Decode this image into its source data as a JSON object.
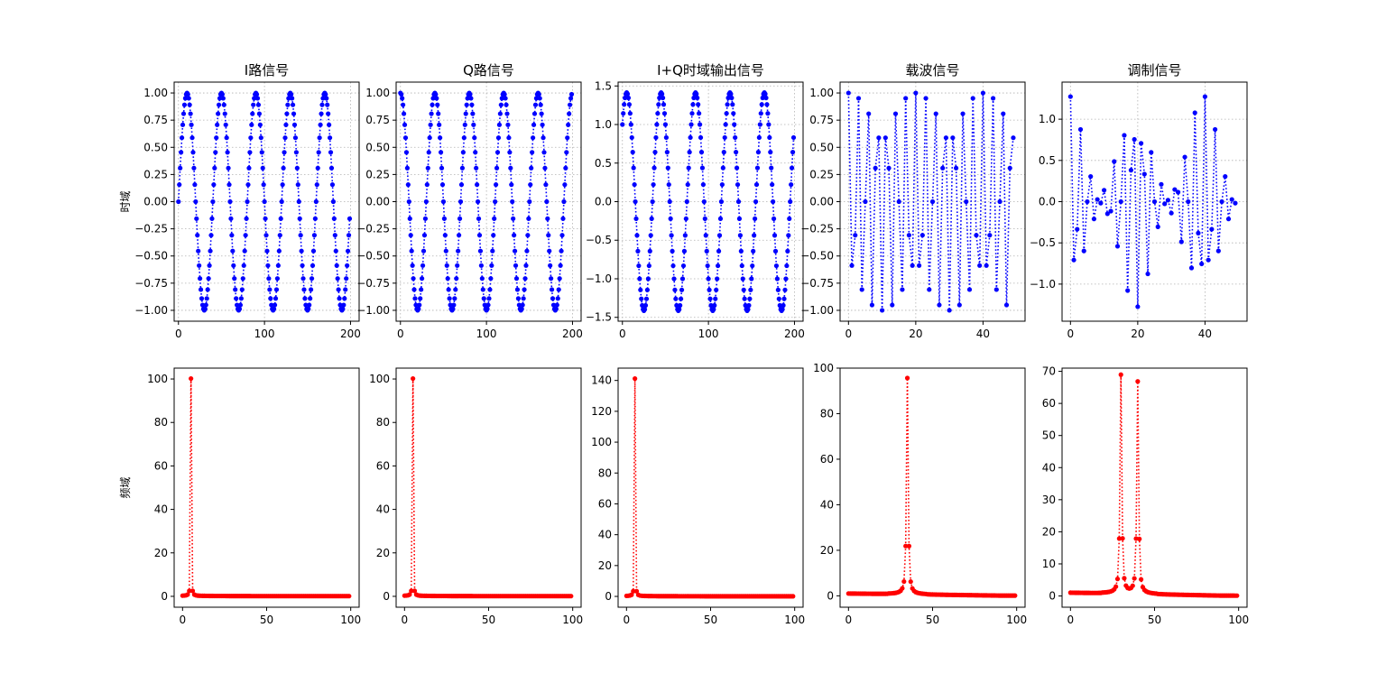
{
  "figure": {
    "row_labels": [
      "时域",
      "频域"
    ]
  },
  "chart_data": [
    {
      "id": "i-time",
      "type": "line",
      "title": "I路信号",
      "ylabel": "时域",
      "color": "#0000ff",
      "linestyle": "dotted",
      "marker": "circle",
      "grid": true,
      "xlim": [
        -5,
        210
      ],
      "ylim": [
        -1.1,
        1.1
      ],
      "xticks": [
        0,
        100,
        200
      ],
      "yticks": [
        -1.0,
        -0.75,
        -0.5,
        -0.25,
        0.0,
        0.25,
        0.5,
        0.75,
        1.0
      ],
      "ytick_format": "2",
      "signal": {
        "kind": "sin",
        "n": 200,
        "amp": 1,
        "cycles_per_sample": 0.025,
        "phase": 0
      }
    },
    {
      "id": "q-time",
      "type": "line",
      "title": "Q路信号",
      "color": "#0000ff",
      "linestyle": "dotted",
      "marker": "circle",
      "grid": true,
      "xlim": [
        -5,
        210
      ],
      "ylim": [
        -1.1,
        1.1
      ],
      "xticks": [
        0,
        100,
        200
      ],
      "yticks": [
        -1.0,
        -0.75,
        -0.5,
        -0.25,
        0.0,
        0.25,
        0.5,
        0.75,
        1.0
      ],
      "ytick_format": "2",
      "signal": {
        "kind": "cos",
        "n": 200,
        "amp": 1,
        "cycles_per_sample": 0.025,
        "phase": 0
      }
    },
    {
      "id": "iq-time",
      "type": "line",
      "title": "I+Q时域输出信号",
      "color": "#0000ff",
      "linestyle": "dotted",
      "marker": "circle",
      "grid": true,
      "xlim": [
        -5,
        210
      ],
      "ylim": [
        -1.55,
        1.55
      ],
      "xticks": [
        0,
        100,
        200
      ],
      "yticks": [
        -1.5,
        -1.0,
        -0.5,
        0.0,
        0.5,
        1.0,
        1.5
      ],
      "ytick_format": "1",
      "signal": {
        "kind": "sumsincos",
        "n": 200,
        "amp": 1,
        "cycles_per_sample": 0.025,
        "phase": 0
      }
    },
    {
      "id": "carrier-time",
      "type": "line",
      "title": "载波信号",
      "color": "#0000ff",
      "linestyle": "dotted",
      "marker": "circle",
      "grid": true,
      "xlim": [
        -2.5,
        52.5
      ],
      "ylim": [
        -1.1,
        1.1
      ],
      "xticks": [
        0,
        20,
        40
      ],
      "yticks": [
        -1.0,
        -0.75,
        -0.5,
        -0.25,
        0.0,
        0.25,
        0.5,
        0.75,
        1.0
      ],
      "ytick_format": "2",
      "signal": {
        "kind": "cos",
        "n": 50,
        "amp": 1,
        "cycles_per_sample": 0.35,
        "phase": 0
      }
    },
    {
      "id": "mod-time",
      "type": "line",
      "title": "调制信号",
      "color": "#0000ff",
      "linestyle": "dotted",
      "marker": "circle",
      "grid": true,
      "xlim": [
        -2.5,
        52.5
      ],
      "ylim": [
        -1.45,
        1.45
      ],
      "xticks": [
        0,
        20,
        40
      ],
      "yticks": [
        -1.0,
        -0.5,
        0.0,
        0.5,
        1.0
      ],
      "ytick_format": "1",
      "signal": {
        "kind": "am",
        "n": 50,
        "amp": 1,
        "cycles_per_sample": 0.35,
        "beat": 0.05,
        "phase": 0
      }
    },
    {
      "id": "i-freq",
      "type": "line",
      "title": "",
      "ylabel": "频域",
      "color": "#ff0000",
      "linestyle": "dotted",
      "marker": "circle",
      "grid": false,
      "xlim": [
        -5,
        105
      ],
      "ylim": [
        -5,
        105
      ],
      "xticks": [
        0,
        50,
        100
      ],
      "yticks": [
        0,
        20,
        40,
        60,
        80,
        100
      ],
      "ytick_format": "0",
      "spectrum": {
        "n": 100,
        "peaks": [
          [
            5,
            100
          ]
        ],
        "base": 0.2,
        "sidelobe": 2.2
      }
    },
    {
      "id": "q-freq",
      "type": "line",
      "title": "",
      "color": "#ff0000",
      "linestyle": "dotted",
      "marker": "circle",
      "grid": false,
      "xlim": [
        -5,
        105
      ],
      "ylim": [
        -5,
        105
      ],
      "xticks": [
        0,
        50,
        100
      ],
      "yticks": [
        0,
        20,
        40,
        60,
        80,
        100
      ],
      "ytick_format": "0",
      "spectrum": {
        "n": 100,
        "peaks": [
          [
            5,
            100
          ]
        ],
        "base": 0.2,
        "sidelobe": 2.2
      }
    },
    {
      "id": "iq-freq",
      "type": "line",
      "title": "",
      "color": "#ff0000",
      "linestyle": "dotted",
      "marker": "circle",
      "grid": false,
      "xlim": [
        -5,
        105
      ],
      "ylim": [
        -7,
        148
      ],
      "xticks": [
        0,
        50,
        100
      ],
      "yticks": [
        0,
        20,
        40,
        60,
        80,
        100,
        120,
        140
      ],
      "ytick_format": "0",
      "spectrum": {
        "n": 100,
        "peaks": [
          [
            5,
            141
          ]
        ],
        "base": 0.2,
        "sidelobe": 3.0
      }
    },
    {
      "id": "carrier-freq",
      "type": "line",
      "title": "",
      "color": "#ff0000",
      "linestyle": "dotted",
      "marker": "circle",
      "grid": false,
      "xlim": [
        -5,
        105
      ],
      "ylim": [
        -5,
        100
      ],
      "xticks": [
        0,
        50,
        100
      ],
      "yticks": [
        0,
        20,
        40,
        60,
        80,
        100
      ],
      "ytick_format": "0",
      "spectrum": {
        "n": 100,
        "peaks": [
          [
            35,
            95
          ]
        ],
        "base": 1.0,
        "sidelobe": 20
      }
    },
    {
      "id": "mod-freq",
      "type": "line",
      "title": "",
      "color": "#ff0000",
      "linestyle": "dotted",
      "marker": "circle",
      "grid": false,
      "xlim": [
        -5,
        105
      ],
      "ylim": [
        -3.5,
        71
      ],
      "xticks": [
        0,
        50,
        100
      ],
      "yticks": [
        0,
        10,
        20,
        30,
        40,
        50,
        60,
        70
      ],
      "ytick_format": "0",
      "spectrum": {
        "n": 100,
        "peaks": [
          [
            30,
            68
          ],
          [
            40,
            66
          ]
        ],
        "base": 1.0,
        "sidelobe": 16
      }
    }
  ]
}
